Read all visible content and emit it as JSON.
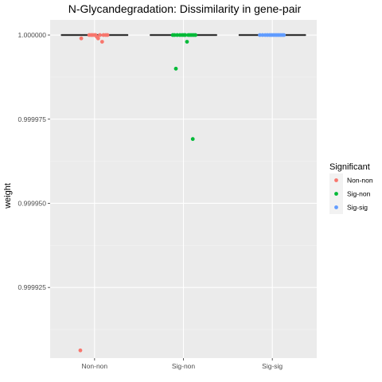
{
  "chart_data": {
    "type": "boxplot-jitter",
    "title": "N-Glycandegradation: Dissimilarity in gene-pair",
    "xlabel": "",
    "ylabel": "weight",
    "categories": [
      "Non-non",
      "Sig-non",
      "Sig-sig"
    ],
    "ylim": [
      0.999904,
      1.0000045
    ],
    "y_ticks": [
      0.999925,
      0.99995,
      0.999975,
      1.0
    ],
    "y_tick_labels": [
      "0.999925",
      "0.999950",
      "0.999975",
      "1.000000"
    ],
    "grid": true,
    "legend": {
      "title": "Significant",
      "position": "right",
      "entries": [
        {
          "label": "Non-non",
          "color": "#F8766D"
        },
        {
          "label": "Sig-non",
          "color": "#00BA38"
        },
        {
          "label": "Sig-sig",
          "color": "#619CFF"
        }
      ]
    },
    "boxes": [
      {
        "category": "Non-non",
        "median": 1.0,
        "q1": 1.0,
        "q3": 1.0
      },
      {
        "category": "Sig-non",
        "median": 1.0,
        "q1": 1.0,
        "q3": 1.0
      },
      {
        "category": "Sig-sig",
        "median": 1.0,
        "q1": 1.0,
        "q3": 1.0
      }
    ],
    "series": [
      {
        "name": "Non-non",
        "color": "#F8766D",
        "points": [
          {
            "x": "Non-non",
            "jitter": -0.3,
            "y": 0.999999
          },
          {
            "x": "Non-non",
            "jitter": -0.12,
            "y": 1.0
          },
          {
            "x": "Non-non",
            "jitter": -0.08,
            "y": 1.0
          },
          {
            "x": "Non-non",
            "jitter": -0.05,
            "y": 1.0
          },
          {
            "x": "Non-non",
            "jitter": -0.01,
            "y": 1.0
          },
          {
            "x": "Non-non",
            "jitter": 0.02,
            "y": 1.0
          },
          {
            "x": "Non-non",
            "jitter": 0.05,
            "y": 0.9999995
          },
          {
            "x": "Non-non",
            "jitter": 0.08,
            "y": 0.999999
          },
          {
            "x": "Non-non",
            "jitter": 0.12,
            "y": 1.0
          },
          {
            "x": "Non-non",
            "jitter": 0.17,
            "y": 0.999998
          },
          {
            "x": "Non-non",
            "jitter": 0.2,
            "y": 1.0
          },
          {
            "x": "Non-non",
            "jitter": 0.25,
            "y": 1.0
          },
          {
            "x": "Non-non",
            "jitter": 0.29,
            "y": 1.0
          },
          {
            "x": "Non-non",
            "jitter": -0.32,
            "y": 0.9999063
          }
        ]
      },
      {
        "name": "Sig-non",
        "color": "#00BA38",
        "points": [
          {
            "x": "Sig-non",
            "jitter": -0.24,
            "y": 1.0
          },
          {
            "x": "Sig-non",
            "jitter": -0.2,
            "y": 1.0
          },
          {
            "x": "Sig-non",
            "jitter": -0.14,
            "y": 1.0
          },
          {
            "x": "Sig-non",
            "jitter": -0.08,
            "y": 1.0
          },
          {
            "x": "Sig-non",
            "jitter": -0.03,
            "y": 1.0
          },
          {
            "x": "Sig-non",
            "jitter": 0.01,
            "y": 1.0
          },
          {
            "x": "Sig-non",
            "jitter": 0.04,
            "y": 1.0
          },
          {
            "x": "Sig-non",
            "jitter": 0.08,
            "y": 0.999998
          },
          {
            "x": "Sig-non",
            "jitter": 0.11,
            "y": 1.0
          },
          {
            "x": "Sig-non",
            "jitter": 0.15,
            "y": 1.0
          },
          {
            "x": "Sig-non",
            "jitter": 0.19,
            "y": 1.0
          },
          {
            "x": "Sig-non",
            "jitter": 0.23,
            "y": 1.0
          },
          {
            "x": "Sig-non",
            "jitter": 0.27,
            "y": 1.0
          },
          {
            "x": "Sig-non",
            "jitter": -0.17,
            "y": 0.99999
          },
          {
            "x": "Sig-non",
            "jitter": 0.21,
            "y": 0.9999691
          }
        ]
      },
      {
        "name": "Sig-sig",
        "color": "#619CFF",
        "points": [
          {
            "x": "Sig-sig",
            "jitter": -0.28,
            "y": 1.0
          },
          {
            "x": "Sig-sig",
            "jitter": -0.22,
            "y": 1.0
          },
          {
            "x": "Sig-sig",
            "jitter": -0.16,
            "y": 1.0
          },
          {
            "x": "Sig-sig",
            "jitter": -0.11,
            "y": 1.0
          },
          {
            "x": "Sig-sig",
            "jitter": -0.06,
            "y": 1.0
          },
          {
            "x": "Sig-sig",
            "jitter": -0.02,
            "y": 1.0
          },
          {
            "x": "Sig-sig",
            "jitter": 0.02,
            "y": 1.0
          },
          {
            "x": "Sig-sig",
            "jitter": 0.06,
            "y": 1.0
          },
          {
            "x": "Sig-sig",
            "jitter": 0.1,
            "y": 1.0
          },
          {
            "x": "Sig-sig",
            "jitter": 0.14,
            "y": 1.0
          },
          {
            "x": "Sig-sig",
            "jitter": 0.18,
            "y": 1.0
          },
          {
            "x": "Sig-sig",
            "jitter": 0.22,
            "y": 1.0
          },
          {
            "x": "Sig-sig",
            "jitter": 0.26,
            "y": 1.0
          }
        ]
      }
    ]
  }
}
